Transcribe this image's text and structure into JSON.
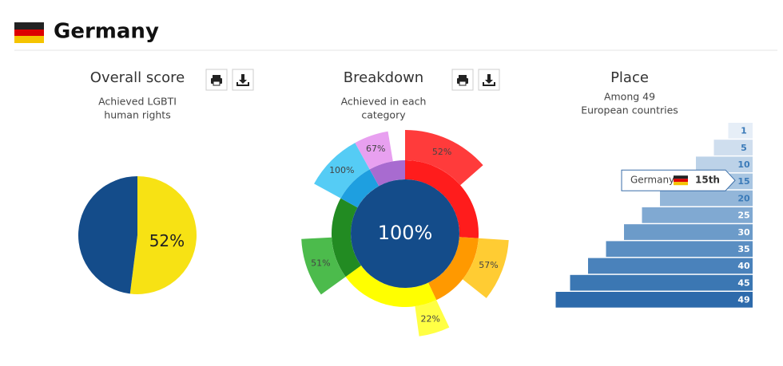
{
  "header": {
    "title": "Germany"
  },
  "chart_data": [
    {
      "type": "pie",
      "title": "Overall score",
      "subtitle": [
        "Achieved LGBTI",
        "human rights"
      ],
      "values": [
        52,
        48
      ],
      "value_labels": [
        "52%",
        null
      ],
      "colors": [
        "#f7e214",
        "#144c8a"
      ]
    },
    {
      "type": "sunburst",
      "title": "Breakdown",
      "subtitle": [
        "Achieved in each",
        "category"
      ],
      "center_label": "100%",
      "center_color": "#144c8a",
      "weights": [
        26,
        17,
        22,
        18,
        9,
        8
      ],
      "values": [
        52,
        57,
        22,
        51,
        100,
        67
      ],
      "value_labels": [
        "52%",
        "57%",
        "22%",
        "51%",
        "100%",
        "67%"
      ],
      "colors": [
        "#ff1c1c",
        "#ff9900",
        "#ffff00",
        "#228b22",
        "#1e9fe0",
        "#a86bd0"
      ],
      "wedge_colors": [
        "#ff3b3b",
        "#ffcc33",
        "#ffff44",
        "#4cbb4c",
        "#55ccf5",
        "#e8a0f0"
      ]
    },
    {
      "type": "staircase",
      "title": "Place",
      "subtitle": [
        "Among 49",
        "European countries"
      ],
      "values": [
        1,
        5,
        10,
        15,
        20,
        25,
        30,
        35,
        40,
        45,
        49
      ],
      "colors": [
        "#e6eef7",
        "#cfdeee",
        "#bcd2e8",
        "#a9c6e2",
        "#93b6d9",
        "#80a9d2",
        "#6c9bc9",
        "#5a8ec2",
        "#4a82bb",
        "#3b77b3",
        "#2d6aab"
      ],
      "highlight": {
        "label": "Germany",
        "value": 15,
        "value_label": "15th"
      }
    }
  ]
}
